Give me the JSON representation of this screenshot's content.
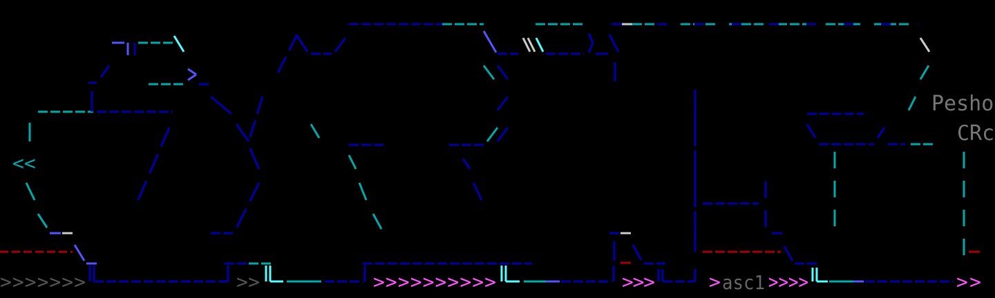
{
  "terminal": {
    "labels": {
      "name": "Pesho",
      "group": "CRc",
      "session": "asc1"
    },
    "chevrons": {
      "gray": ">>>>>>>",
      "gray_short": ">>",
      "magenta_long": ">>>>>>>>>>",
      "magenta_three": ">>>",
      "magenta_one": ">",
      "magenta_four": ">>>>",
      "magenta_end": ">>"
    },
    "colors": {
      "dark_blue": "#0000aa",
      "bright_blue": "#5555ff",
      "cyan": "#00aaaa",
      "light_cyan": "#55ffff",
      "red": "#aa0000",
      "magenta": "#ff55ff",
      "gray": "#666666",
      "white": "#cccccc"
    }
  }
}
